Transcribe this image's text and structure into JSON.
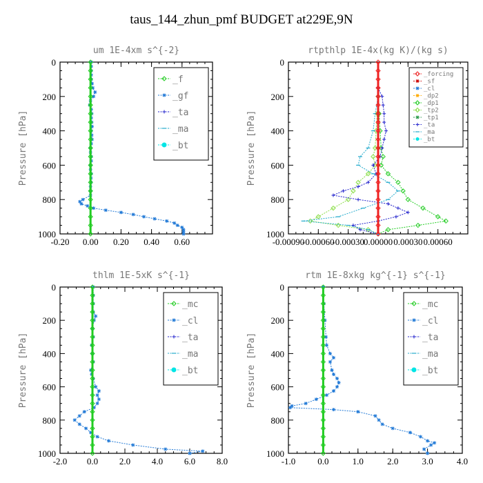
{
  "figure": {
    "title": "taus_144_zhun_pmf  BUDGET at229E,9N"
  },
  "colors": {
    "frame": "#000000",
    "f": "#22cc22",
    "gf": "#1f78d6",
    "ta": "#2222cc",
    "ma": "#22aacc",
    "bt": "#00e5e5",
    "forcing": "#ee2222",
    "sf": "#cc0000",
    "cl": "#1f78d6",
    "dp2": "#ffaa00",
    "dp1": "#22cc22",
    "tp2": "#88dd44",
    "tp1": "#2a9a4a",
    "mc": "#22cc22"
  },
  "chart_data": [
    {
      "id": "um",
      "type": "line",
      "title": "um   1E-4xm  s^{-2}",
      "ylabel": "Pressure [hPa]",
      "xlim": [
        -0.2,
        0.8
      ],
      "ylim": [
        0,
        1000
      ],
      "y_inverted": true,
      "xticks": [
        -0.2,
        0.0,
        0.2,
        0.4,
        0.6
      ],
      "xtick_labels": [
        "-0.20",
        "0.00",
        "0.20",
        "0.40",
        "0.60"
      ],
      "yticks": [
        0,
        200,
        400,
        600,
        800,
        1000
      ],
      "ytick_labels": [
        "0",
        "200",
        "400",
        "600",
        "800",
        "1000"
      ],
      "legend_position": "top-right",
      "legend_labels": [
        "_f",
        "_gf",
        "_ta",
        "_ma",
        "_bt"
      ],
      "series": [
        {
          "name": "_gf",
          "color_key": "gf",
          "marker": "star",
          "y": [
            0,
            25,
            50,
            75,
            100,
            125,
            150,
            175,
            200,
            225,
            250,
            275,
            300,
            325,
            350,
            375,
            400,
            425,
            450,
            475,
            500,
            525,
            550,
            575,
            600,
            625,
            650,
            675,
            700,
            725,
            750,
            775,
            800,
            812,
            825,
            837,
            850,
            862,
            875,
            887,
            900,
            912,
            925,
            937,
            950,
            962,
            975,
            987,
            1000
          ],
          "x": [
            0.005,
            0.005,
            0.005,
            0.005,
            0.005,
            0.01,
            0.015,
            0.03,
            0.02,
            0.0,
            -0.005,
            0.005,
            0.008,
            0.005,
            0.008,
            0.01,
            0.005,
            0.008,
            0.01,
            0.005,
            0.0,
            0.0,
            0.005,
            0.005,
            0.0,
            0.0,
            0.005,
            0.003,
            0.003,
            0.0,
            0.0,
            0.0,
            -0.05,
            -0.07,
            -0.06,
            -0.02,
            0.02,
            0.1,
            0.2,
            0.28,
            0.35,
            0.42,
            0.5,
            0.55,
            0.57,
            0.6,
            0.61,
            0.61,
            0.61
          ]
        },
        {
          "name": "_f",
          "color_key": "f",
          "marker": "diamond",
          "y": [
            0,
            50,
            100,
            150,
            200,
            250,
            300,
            350,
            400,
            450,
            500,
            550,
            600,
            650,
            700,
            750,
            800,
            850,
            900,
            950,
            1000
          ],
          "x": [
            0,
            0,
            0,
            0,
            0,
            0,
            0,
            0,
            0,
            0,
            0,
            0,
            0,
            0,
            0,
            0,
            0,
            0,
            0,
            0,
            0
          ]
        }
      ]
    },
    {
      "id": "rtpthlp",
      "type": "line",
      "title": "rtpthlp  1E-4x(kg K)/(kg s)",
      "ylabel": "Pressure [hPa]",
      "xlim": [
        -0.0009,
        0.0009
      ],
      "ylim": [
        0,
        1000
      ],
      "y_inverted": true,
      "xticks": [
        -0.0009,
        -0.0006,
        -0.0003,
        0.0,
        0.0003,
        0.0006
      ],
      "xtick_labels": [
        "-0.00090",
        "-0.00060",
        "-0.00030",
        "0.00000",
        "0.00030",
        "0.00060"
      ],
      "yticks": [
        0,
        200,
        400,
        600,
        800,
        1000
      ],
      "ytick_labels": [
        "0",
        "200",
        "400",
        "600",
        "800",
        "1000"
      ],
      "legend_position": "top-right",
      "legend_labels": [
        "_forcing",
        "_sf",
        "_cl",
        "_dp2",
        "_dp1",
        "_tp2",
        "_tp1",
        "_ta",
        "_ma",
        "_bt"
      ],
      "series": [
        {
          "name": "_dp1",
          "color_key": "dp1",
          "marker": "diamond",
          "y": [
            200,
            300,
            400,
            500,
            550,
            600,
            650,
            700,
            750,
            800,
            850,
            900,
            925,
            950,
            975,
            1000
          ],
          "x": [
            0.0,
            1e-05,
            2e-05,
            3e-05,
            5e-05,
            3e-05,
            0.0001,
            0.0002,
            0.00025,
            0.0003,
            0.00045,
            0.0006,
            0.00068,
            0.0004,
            0.0001,
            0.0
          ]
        },
        {
          "name": "_tp2",
          "color_key": "tp2",
          "marker": "diamond",
          "y": [
            200,
            300,
            400,
            500,
            550,
            600,
            650,
            700,
            750,
            800,
            850,
            900,
            925,
            950,
            975,
            1000
          ],
          "x": [
            0.0,
            -1e-05,
            -2e-05,
            -3e-05,
            -5e-05,
            -3e-05,
            -0.0001,
            -0.0002,
            -0.00025,
            -0.0003,
            -0.00045,
            -0.0006,
            -0.00068,
            -0.0004,
            -0.0001,
            0.0
          ]
        },
        {
          "name": "_ta",
          "color_key": "ta",
          "marker": "plus",
          "y": [
            150,
            200,
            250,
            300,
            350,
            400,
            450,
            500,
            550,
            600,
            650,
            700,
            725,
            750,
            775,
            800,
            825,
            850,
            875,
            900,
            925,
            950,
            975,
            1000
          ],
          "x": [
            0.0,
            4e-05,
            5e-05,
            6e-05,
            6e-05,
            8e-05,
            6e-05,
            4e-05,
            2e-05,
            -5e-05,
            -2e-05,
            -0.0001,
            -0.0002,
            -0.00035,
            -0.00045,
            -0.0002,
            0.0001,
            0.0002,
            0.0003,
            0.00018,
            0.0,
            -0.00025,
            -0.00018,
            0.0
          ]
        },
        {
          "name": "_ma",
          "color_key": "ma",
          "marker": "dash",
          "y": [
            200,
            300,
            400,
            500,
            550,
            600,
            650,
            700,
            750,
            800,
            850,
            900,
            925,
            950,
            975,
            1000
          ],
          "x": [
            0.0,
            -3e-05,
            -5e-05,
            -0.0001,
            -0.00018,
            -0.0002,
            -5e-05,
            0.0001,
            0.0002,
            0.0001,
            -0.00015,
            -0.0004,
            -0.00075,
            -0.0003,
            -0.0001,
            0.0
          ]
        },
        {
          "name": "_forcing",
          "color_key": "forcing",
          "marker": "diamond",
          "y": [
            0,
            50,
            100,
            150,
            200,
            250,
            300,
            350,
            400,
            450,
            500,
            550,
            600,
            650,
            700,
            750,
            800,
            850,
            900,
            950,
            1000
          ],
          "x": [
            0,
            0,
            0,
            0,
            0,
            0,
            0,
            0,
            0,
            0,
            0,
            0,
            0,
            0,
            0,
            0,
            0,
            0,
            0,
            0,
            0
          ]
        }
      ]
    },
    {
      "id": "thlm",
      "type": "line",
      "title": "thlm  1E-5xK  s^{-1}",
      "ylabel": "Pressure [hPa]",
      "xlim": [
        -2.0,
        8.0
      ],
      "ylim": [
        0,
        1000
      ],
      "y_inverted": true,
      "xticks": [
        -2.0,
        0.0,
        2.0,
        4.0,
        6.0,
        8.0
      ],
      "xtick_labels": [
        "-2.0",
        "0.0",
        "2.0",
        "4.0",
        "6.0",
        "8.0"
      ],
      "yticks": [
        0,
        200,
        400,
        600,
        800,
        1000
      ],
      "ytick_labels": [
        "0",
        "200",
        "400",
        "600",
        "800",
        "1000"
      ],
      "legend_position": "top-right",
      "legend_labels": [
        "_mc",
        "_cl",
        "_ta",
        "_ma",
        "_bt"
      ],
      "series": [
        {
          "name": "_cl",
          "color_key": "cl",
          "marker": "star",
          "y": [
            0,
            50,
            100,
            150,
            175,
            200,
            250,
            300,
            350,
            400,
            450,
            500,
            525,
            550,
            600,
            625,
            650,
            675,
            700,
            725,
            750,
            775,
            800,
            825,
            850,
            875,
            900,
            925,
            950,
            975,
            987,
            1000
          ],
          "x": [
            0.05,
            0.05,
            0.05,
            0.05,
            0.2,
            0.1,
            0.0,
            0.05,
            -0.05,
            0.0,
            0.05,
            -0.1,
            -0.05,
            0.05,
            0.2,
            0.4,
            0.3,
            0.4,
            0.3,
            0.1,
            -0.5,
            -0.8,
            -1.1,
            -0.8,
            -0.4,
            -0.1,
            0.3,
            1.0,
            2.5,
            4.5,
            6.8,
            6.0
          ]
        },
        {
          "name": "_mc",
          "color_key": "mc",
          "marker": "diamond",
          "y": [
            0,
            50,
            100,
            150,
            200,
            250,
            300,
            350,
            400,
            450,
            500,
            550,
            600,
            650,
            700,
            750,
            800,
            850,
            900,
            950,
            1000
          ],
          "x": [
            0,
            0,
            0,
            0,
            0,
            0,
            0,
            0,
            0,
            0,
            0,
            0,
            0,
            0,
            0,
            0,
            0,
            0,
            0,
            0,
            0
          ]
        }
      ]
    },
    {
      "id": "rtm",
      "type": "line",
      "title": "rtm  1E-8xkg kg^{-1} s^{-1}",
      "ylabel": "Pressure [hPa]",
      "xlim": [
        -1.0,
        4.0
      ],
      "ylim": [
        0,
        1000
      ],
      "y_inverted": true,
      "xticks": [
        -1.0,
        0.0,
        1.0,
        2.0,
        3.0,
        4.0
      ],
      "xtick_labels": [
        "-1.0",
        "0.0",
        "1.0",
        "2.0",
        "3.0",
        "4.0"
      ],
      "yticks": [
        0,
        200,
        400,
        600,
        800,
        1000
      ],
      "ytick_labels": [
        "0",
        "200",
        "400",
        "600",
        "800",
        "1000"
      ],
      "legend_position": "top-right",
      "legend_labels": [
        "_mc",
        "_cl",
        "_ta",
        "_ma",
        "_bt"
      ],
      "series": [
        {
          "name": "_cl",
          "color_key": "cl",
          "marker": "star",
          "y": [
            0,
            100,
            200,
            300,
            350,
            400,
            425,
            450,
            500,
            525,
            550,
            575,
            600,
            625,
            650,
            675,
            700,
            715,
            725,
            737,
            750,
            775,
            800,
            825,
            850,
            875,
            900,
            925,
            937,
            950,
            975,
            1000
          ],
          "x": [
            0.0,
            0.02,
            0.05,
            0.08,
            0.1,
            0.2,
            0.3,
            0.2,
            0.25,
            0.3,
            0.4,
            0.45,
            0.4,
            0.3,
            0.1,
            -0.2,
            -0.5,
            -0.9,
            -0.95,
            0.3,
            1.0,
            1.5,
            1.6,
            1.7,
            2.0,
            2.5,
            2.8,
            3.0,
            3.2,
            3.1,
            2.9,
            3.0
          ]
        },
        {
          "name": "_mc",
          "color_key": "mc",
          "marker": "diamond",
          "y": [
            0,
            50,
            100,
            150,
            200,
            250,
            300,
            350,
            400,
            450,
            500,
            550,
            600,
            650,
            700,
            750,
            800,
            850,
            900,
            950,
            1000
          ],
          "x": [
            0,
            0,
            0,
            0,
            0,
            0,
            0,
            0,
            0,
            0,
            0,
            0,
            0,
            0,
            0,
            0,
            0,
            0,
            0,
            0,
            0
          ]
        }
      ]
    }
  ]
}
